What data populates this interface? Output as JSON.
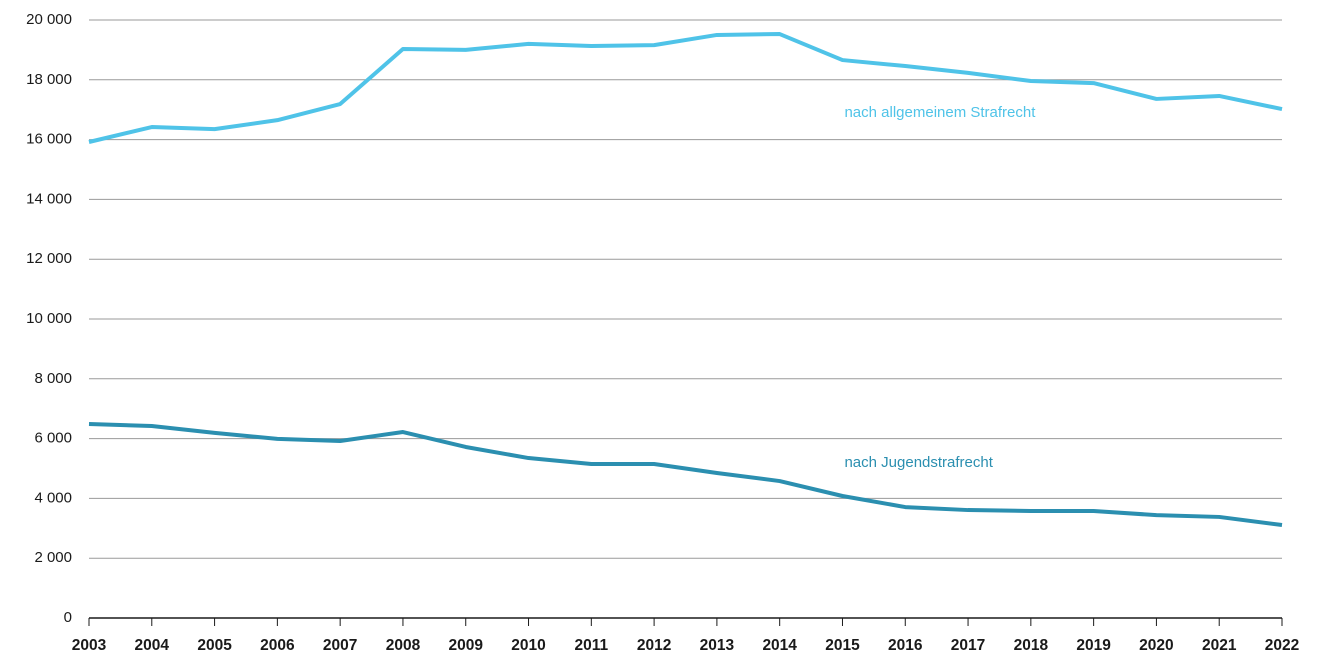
{
  "chart_data": {
    "type": "line",
    "categories": [
      "2003",
      "2004",
      "2005",
      "2006",
      "2007",
      "2008",
      "2009",
      "2010",
      "2011",
      "2012",
      "2013",
      "2014",
      "2015",
      "2016",
      "2017",
      "2018",
      "2019",
      "2020",
      "2021",
      "2022"
    ],
    "series": [
      {
        "name": "nach allgemeinem Strafrecht",
        "color": "#4fc3e8",
        "values": [
          15920,
          16420,
          16350,
          16650,
          17190,
          19030,
          19000,
          19200,
          19130,
          19160,
          19500,
          19530,
          18660,
          18460,
          18230,
          17960,
          17890,
          17360,
          17460,
          17020
        ]
      },
      {
        "name": "nach Jugendstrafrecht",
        "color": "#2b8fb0",
        "values": [
          6490,
          6420,
          6190,
          5990,
          5920,
          6220,
          5720,
          5350,
          5150,
          5150,
          4850,
          4580,
          4080,
          3710,
          3610,
          3580,
          3580,
          3440,
          3380,
          3110
        ]
      }
    ],
    "ylim": [
      0,
      20000
    ],
    "yticks": [
      0,
      {
        "value": 2000,
        "label": "2 000"
      },
      {
        "value": 4000,
        "label": "4 000"
      },
      {
        "value": 6000,
        "label": "6 000"
      },
      {
        "value": 8000,
        "label": "8 000"
      },
      {
        "value": 10000,
        "label": "10 000"
      },
      {
        "value": 12000,
        "label": "12 000"
      },
      {
        "value": 14000,
        "label": "14 000"
      },
      {
        "value": 16000,
        "label": "16 000"
      },
      {
        "value": 18000,
        "label": "18 000"
      },
      {
        "value": 20000,
        "label": "20 000"
      }
    ],
    "grid": true
  }
}
